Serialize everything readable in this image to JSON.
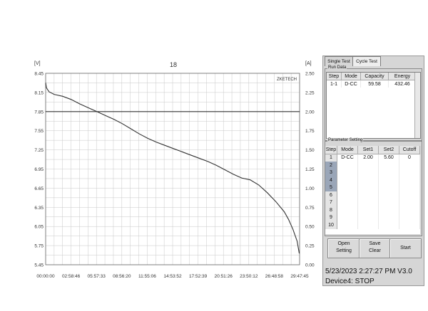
{
  "chart_data": {
    "type": "line",
    "title": "18",
    "left_unit": "[V]",
    "right_unit": "[A]",
    "watermark": "ZKETECH",
    "y_left_ticks": [
      "8.45",
      "8.15",
      "7.85",
      "7.55",
      "7.25",
      "6.95",
      "6.65",
      "6.35",
      "6.05",
      "5.75",
      "5.45"
    ],
    "y_right_ticks": [
      "2.50",
      "2.25",
      "2.00",
      "1.75",
      "1.50",
      "1.25",
      "1.00",
      "0.75",
      "0.50",
      "0.25",
      "0.00"
    ],
    "x_ticks": [
      "00:00:00",
      "02:58:46",
      "05:57:33",
      "08:56:20",
      "11:55:06",
      "14:53:52",
      "17:52:39",
      "20:51:26",
      "23:50:12",
      "26:48:58",
      "29:47:45"
    ],
    "ylim_left": [
      5.45,
      8.45
    ],
    "ylim_right": [
      0.0,
      2.5
    ],
    "xlim_hours": [
      0,
      29.796
    ],
    "grid": true,
    "series": [
      {
        "axis": "left",
        "color": "#333333",
        "x": [
          0,
          0.1,
          0.4,
          1,
          2,
          3,
          4,
          5,
          6,
          7,
          8,
          9,
          10,
          11,
          12,
          13,
          14,
          15,
          16,
          17,
          18,
          19,
          20,
          21,
          22,
          23,
          24,
          25,
          26,
          27,
          28,
          28.5,
          29,
          29.5,
          29.75
        ],
        "y": [
          8.3,
          8.22,
          8.16,
          8.12,
          8.09,
          8.04,
          7.97,
          7.91,
          7.85,
          7.79,
          7.73,
          7.66,
          7.58,
          7.5,
          7.43,
          7.37,
          7.32,
          7.27,
          7.22,
          7.17,
          7.12,
          7.07,
          7.01,
          6.94,
          6.87,
          6.81,
          6.78,
          6.7,
          6.58,
          6.44,
          6.28,
          6.16,
          6.01,
          5.82,
          5.63
        ]
      },
      {
        "axis": "right",
        "color": "#333333",
        "x": [
          0,
          29.796
        ],
        "y": [
          2.0,
          2.0
        ]
      }
    ]
  },
  "panel": {
    "tabs": [
      "Single Test",
      "Cycle Test"
    ],
    "run_data": {
      "label": "Run Data",
      "headers": [
        "Step",
        "Mode",
        "Capacity",
        "Energy"
      ],
      "rows": [
        [
          "1-1",
          "D-CC",
          "59.58",
          "432.46"
        ]
      ]
    },
    "parameter": {
      "label": "Parameter Setting",
      "headers": [
        "Step",
        "Mode",
        "Set1",
        "Set2",
        "Cutoff"
      ],
      "rows": [
        [
          "1",
          "D-CC",
          "2.00",
          "5.60",
          "0"
        ],
        [
          "2",
          "",
          "",
          "",
          ""
        ],
        [
          "3",
          "",
          "",
          "",
          ""
        ],
        [
          "4",
          "",
          "",
          "",
          ""
        ],
        [
          "5",
          "",
          "",
          "",
          ""
        ],
        [
          "6",
          "",
          "",
          "",
          ""
        ],
        [
          "7",
          "",
          "",
          "",
          ""
        ],
        [
          "8",
          "",
          "",
          "",
          ""
        ],
        [
          "9",
          "",
          "",
          "",
          ""
        ],
        [
          "10",
          "",
          "",
          "",
          ""
        ]
      ],
      "selected_rows": [
        "2",
        "3",
        "4",
        "5"
      ]
    },
    "buttons": {
      "open": "Open",
      "save": "Save",
      "setting": "Setting",
      "clear": "Clear",
      "start": "Start"
    }
  },
  "status": {
    "datetime": "5/23/2023 2:27:27 PM  V3.0",
    "device": "Device4: STOP"
  }
}
